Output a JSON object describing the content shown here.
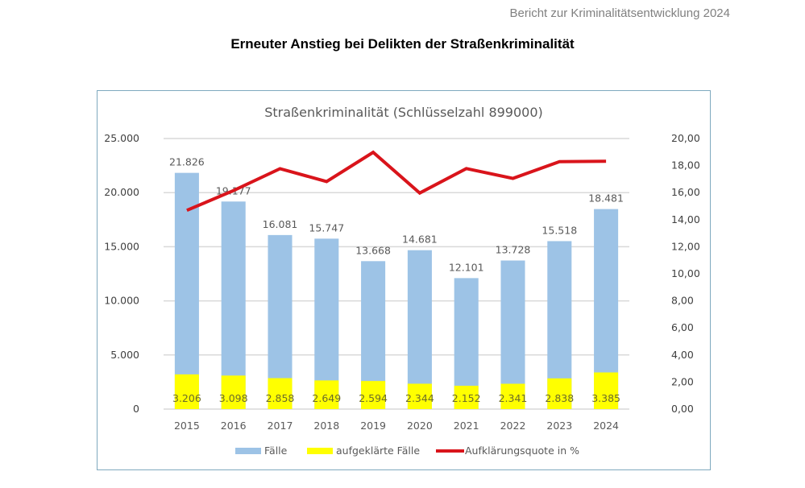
{
  "page": {
    "report_header": "Bericht zur Kriminalitätsentwicklung 2024",
    "title": "Erneuter Anstieg bei Delikten der Straßenkriminalität"
  },
  "colors": {
    "faelle": "#9dc3e6",
    "aufgeklaert": "#ffff00",
    "quote": "#d9141b",
    "grid": "#d9d9d9",
    "frame": "#7fa9bf"
  },
  "chart_data": {
    "type": "bar",
    "title": "Straßenkriminalität (Schlüsselzahl 899000)",
    "categories": [
      "2015",
      "2016",
      "2017",
      "2018",
      "2019",
      "2020",
      "2021",
      "2022",
      "2023",
      "2024"
    ],
    "series": [
      {
        "name": "Fälle",
        "kind": "bar",
        "axis": "left",
        "values": [
          21826,
          19177,
          16081,
          15747,
          13668,
          14681,
          12101,
          13728,
          15518,
          18481
        ],
        "labels": [
          "21.826",
          "19.177",
          "16.081",
          "15.747",
          "13.668",
          "14.681",
          "12.101",
          "13.728",
          "15.518",
          "18.481"
        ]
      },
      {
        "name": "aufgeklärte Fälle",
        "kind": "bar",
        "axis": "left",
        "values": [
          3206,
          3098,
          2858,
          2649,
          2594,
          2344,
          2152,
          2341,
          2838,
          3385
        ],
        "labels": [
          "3.206",
          "3.098",
          "2.858",
          "2.649",
          "2.594",
          "2.344",
          "2.152",
          "2.341",
          "2.838",
          "3.385"
        ]
      },
      {
        "name": "Aufklärungsquote in %",
        "kind": "line",
        "axis": "right",
        "values": [
          14.69,
          16.15,
          17.77,
          16.82,
          18.98,
          15.97,
          17.78,
          17.05,
          18.29,
          18.32
        ]
      }
    ],
    "y_left": {
      "range": [
        0,
        25000
      ],
      "ticks": [
        0,
        5000,
        10000,
        15000,
        20000,
        25000
      ],
      "tick_labels": [
        "0",
        "5.000",
        "10.000",
        "15.000",
        "20.000",
        "25.000"
      ]
    },
    "y_right": {
      "range": [
        0,
        20
      ],
      "ticks": [
        0,
        2,
        4,
        6,
        8,
        10,
        12,
        14,
        16,
        18,
        20
      ],
      "tick_labels": [
        "0,00",
        "2,00",
        "4,00",
        "6,00",
        "8,00",
        "10,00",
        "12,00",
        "14,00",
        "16,00",
        "18,00",
        "20,00"
      ]
    },
    "xlabel": "",
    "ylabel": "",
    "grid": true,
    "legend": {
      "position": "bottom",
      "entries": [
        "Fälle",
        "aufgeklärte Fälle",
        "Aufklärungsquote in %"
      ]
    }
  }
}
